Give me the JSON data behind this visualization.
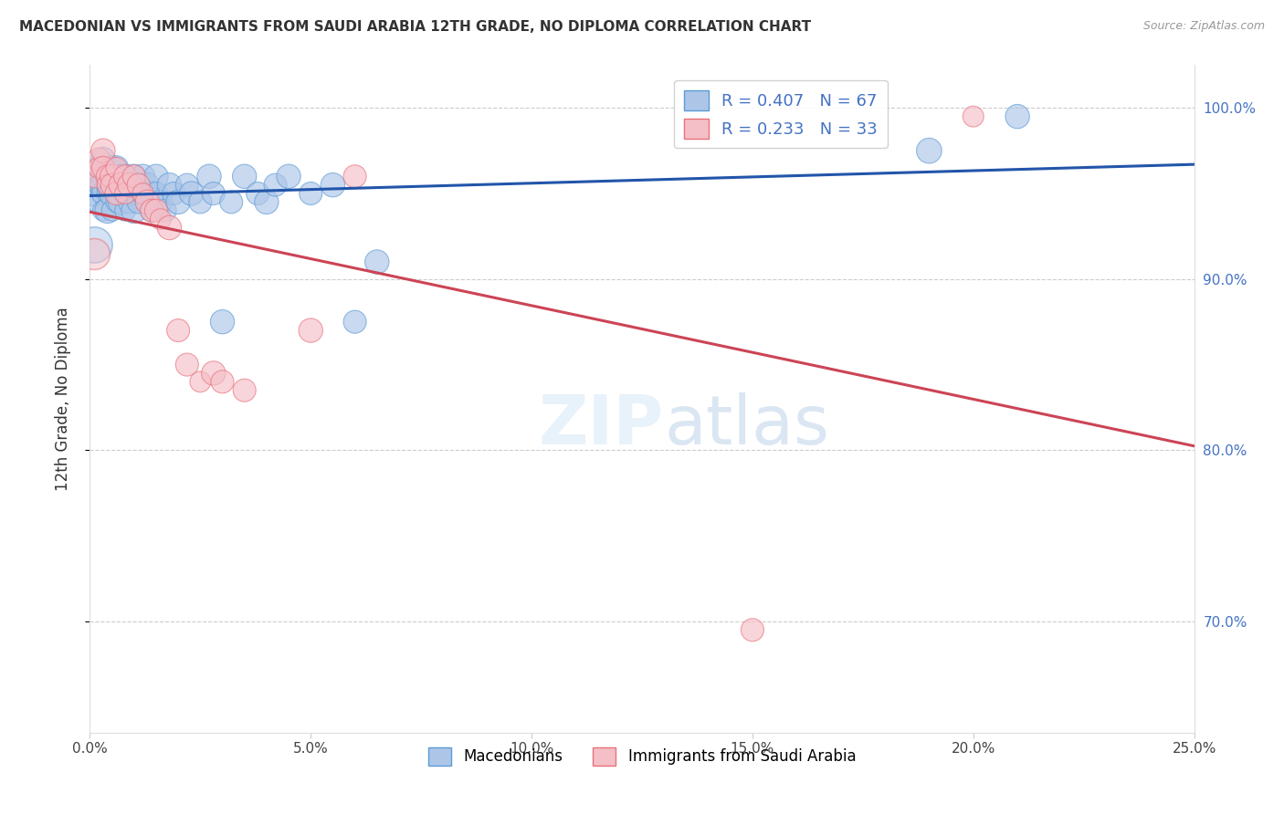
{
  "title": "MACEDONIAN VS IMMIGRANTS FROM SAUDI ARABIA 12TH GRADE, NO DIPLOMA CORRELATION CHART",
  "source": "Source: ZipAtlas.com",
  "ylabel": "12th Grade, No Diploma",
  "xmin": 0.0,
  "xmax": 0.25,
  "ymin": 0.635,
  "ymax": 1.025,
  "yticks": [
    0.7,
    0.8,
    0.9,
    1.0
  ],
  "ytick_labels": [
    "70.0%",
    "80.0%",
    "90.0%",
    "100.0%"
  ],
  "xticks": [
    0.0,
    0.05,
    0.1,
    0.15,
    0.2,
    0.25
  ],
  "xtick_labels": [
    "0.0%",
    "5.0%",
    "10.0%",
    "15.0%",
    "20.0%",
    "25.0%"
  ],
  "gridline_color": "#cccccc",
  "background_color": "#ffffff",
  "blue_color": "#adc6e8",
  "blue_edge_color": "#5b9bd5",
  "pink_color": "#f5bfc8",
  "pink_edge_color": "#e8707a",
  "blue_line_color": "#2255aa",
  "pink_line_color": "#cc4455",
  "R_blue": 0.407,
  "N_blue": 67,
  "R_pink": 0.233,
  "N_pink": 33,
  "legend_label_blue": "Macedonians",
  "legend_label_pink": "Immigrants from Saudi Arabia",
  "blue_points_x": [
    0.001,
    0.001,
    0.001,
    0.002,
    0.002,
    0.002,
    0.002,
    0.003,
    0.003,
    0.003,
    0.003,
    0.003,
    0.004,
    0.004,
    0.004,
    0.004,
    0.005,
    0.005,
    0.005,
    0.005,
    0.006,
    0.006,
    0.006,
    0.007,
    0.007,
    0.007,
    0.008,
    0.008,
    0.008,
    0.009,
    0.009,
    0.01,
    0.01,
    0.01,
    0.011,
    0.011,
    0.012,
    0.012,
    0.013,
    0.013,
    0.014,
    0.014,
    0.015,
    0.015,
    0.016,
    0.017,
    0.018,
    0.019,
    0.02,
    0.022,
    0.023,
    0.025,
    0.027,
    0.028,
    0.03,
    0.032,
    0.035,
    0.038,
    0.04,
    0.042,
    0.045,
    0.05,
    0.055,
    0.06,
    0.065,
    0.19,
    0.21
  ],
  "blue_points_y": [
    0.96,
    0.955,
    0.95,
    0.965,
    0.96,
    0.955,
    0.945,
    0.97,
    0.965,
    0.955,
    0.95,
    0.94,
    0.96,
    0.955,
    0.95,
    0.94,
    0.965,
    0.955,
    0.95,
    0.94,
    0.965,
    0.955,
    0.945,
    0.96,
    0.955,
    0.945,
    0.96,
    0.95,
    0.94,
    0.955,
    0.945,
    0.96,
    0.95,
    0.94,
    0.955,
    0.945,
    0.96,
    0.95,
    0.955,
    0.945,
    0.95,
    0.94,
    0.96,
    0.95,
    0.945,
    0.94,
    0.955,
    0.95,
    0.945,
    0.955,
    0.95,
    0.945,
    0.96,
    0.95,
    0.875,
    0.945,
    0.96,
    0.95,
    0.945,
    0.955,
    0.96,
    0.95,
    0.955,
    0.875,
    0.91,
    0.975,
    0.995
  ],
  "blue_points_size": [
    18,
    15,
    22,
    18,
    22,
    15,
    18,
    20,
    18,
    22,
    18,
    15,
    20,
    18,
    15,
    22,
    20,
    18,
    22,
    15,
    20,
    18,
    15,
    20,
    18,
    22,
    20,
    18,
    15,
    20,
    18,
    20,
    18,
    22,
    20,
    18,
    20,
    18,
    20,
    18,
    20,
    18,
    20,
    18,
    20,
    18,
    20,
    18,
    20,
    18,
    20,
    18,
    20,
    18,
    20,
    18,
    20,
    18,
    20,
    18,
    20,
    18,
    20,
    18,
    20,
    22,
    20
  ],
  "blue_large_idx": [
    0
  ],
  "pink_points_x": [
    0.001,
    0.002,
    0.002,
    0.003,
    0.003,
    0.004,
    0.004,
    0.005,
    0.005,
    0.006,
    0.006,
    0.007,
    0.008,
    0.008,
    0.009,
    0.01,
    0.011,
    0.012,
    0.013,
    0.014,
    0.015,
    0.016,
    0.018,
    0.02,
    0.022,
    0.025,
    0.028,
    0.03,
    0.035,
    0.05,
    0.06,
    0.15,
    0.2
  ],
  "pink_points_y": [
    0.96,
    0.97,
    0.965,
    0.975,
    0.965,
    0.96,
    0.955,
    0.96,
    0.955,
    0.95,
    0.965,
    0.955,
    0.96,
    0.95,
    0.955,
    0.96,
    0.955,
    0.95,
    0.945,
    0.94,
    0.94,
    0.935,
    0.93,
    0.87,
    0.85,
    0.84,
    0.845,
    0.84,
    0.835,
    0.87,
    0.96,
    0.695,
    0.995
  ],
  "pink_points_size": [
    18,
    18,
    15,
    20,
    18,
    18,
    15,
    20,
    18,
    18,
    15,
    20,
    18,
    15,
    20,
    18,
    18,
    15,
    20,
    18,
    18,
    15,
    20,
    18,
    18,
    15,
    20,
    18,
    18,
    20,
    18,
    18,
    15
  ]
}
